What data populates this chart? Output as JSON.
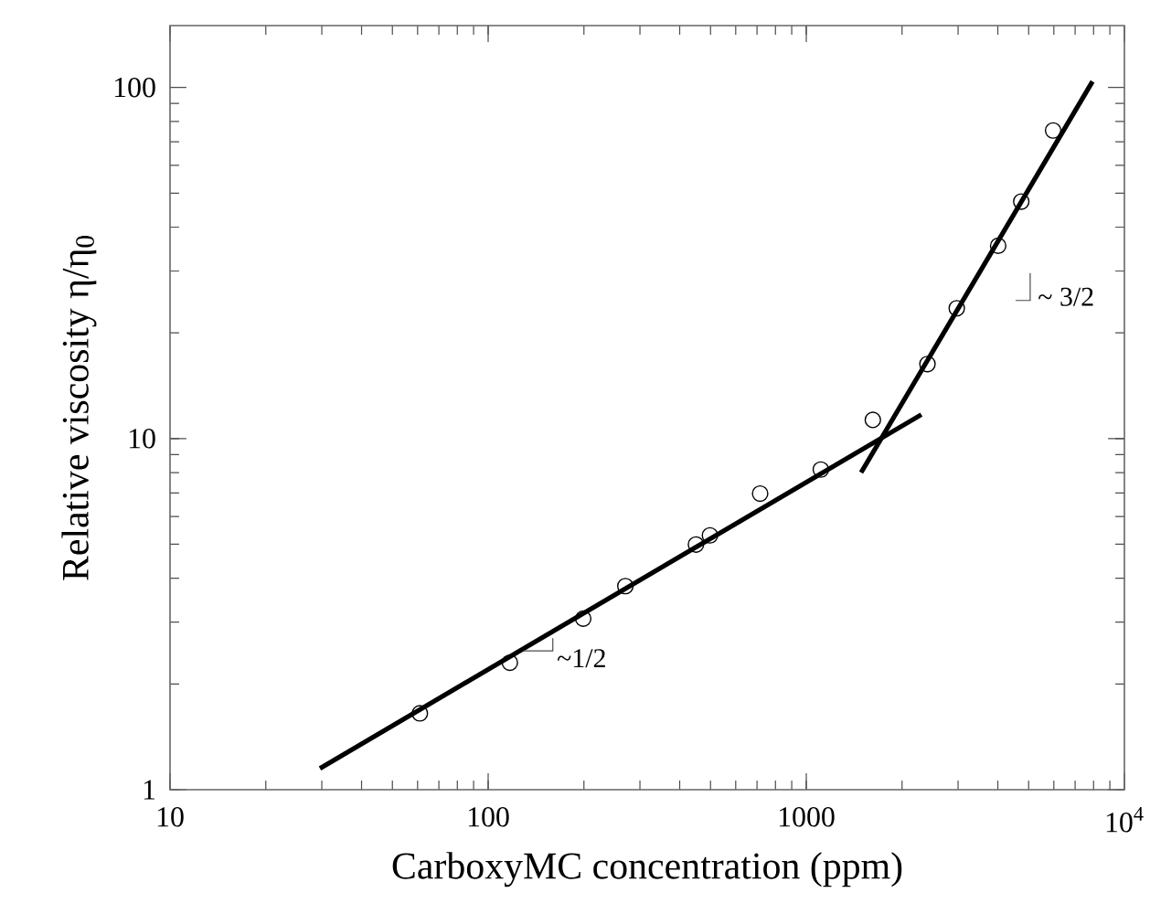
{
  "chart_data": {
    "type": "scatter",
    "xlabel": "CarboxyMC concentration (ppm)",
    "ylabel": "Relative viscosity η/η$_{0}$",
    "log": "xy",
    "xlim": [
      10,
      10000
    ],
    "ylim": [
      1,
      150
    ],
    "xticks": [
      10,
      100,
      1000,
      {
        "value": 10000,
        "label": "10$^{4}$"
      }
    ],
    "yticks": [
      1,
      10,
      100
    ],
    "marker": "circle",
    "grid": false,
    "annotations": [
      "~1/2",
      "~ 3/2"
    ],
    "series": [
      {
        "color": "#000000",
        "x": [
          61,
          117,
          199,
          270,
          450,
          498,
          716,
          1111,
          1619,
          2404,
          2972,
          4010,
          4740,
          5970
        ],
        "values": [
          1.65,
          2.3,
          3.07,
          3.8,
          4.99,
          5.3,
          6.97,
          8.16,
          11.3,
          16.3,
          23.5,
          35.4,
          47.3,
          75.4
        ]
      },
      {
        "type": "line",
        "color": "#000000",
        "marker": "none",
        "x": [
          29.6,
          2300
        ],
        "values": [
          1.15,
          11.7
        ]
      },
      {
        "type": "line",
        "color": "#000000",
        "marker": "none",
        "x": [
          1487,
          7940
        ],
        "values": [
          8.0,
          104
        ]
      }
    ]
  }
}
